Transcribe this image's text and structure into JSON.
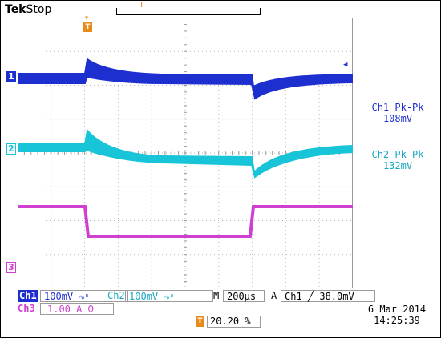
{
  "header": {
    "brand": "Tek",
    "state": "Stop"
  },
  "markers": {
    "trigger_glyph": "T",
    "ch1": "1",
    "ch2": "2",
    "ch3": "3"
  },
  "colors": {
    "ch1": "#1e2fd0",
    "ch2": "#18c4d8",
    "ch3": "#d040d0",
    "trigger": "#e88a18"
  },
  "measurements": [
    {
      "label": "Ch1 Pk-Pk",
      "value": "108mV"
    },
    {
      "label": "Ch2 Pk-Pk",
      "value": "132mV"
    }
  ],
  "readout": {
    "ch1_label": "Ch1",
    "ch1_scale": "100mV",
    "ch2_label": "Ch2",
    "ch2_scale": "100mV",
    "m_label": "M",
    "timebase": "200µs",
    "a_label": "A",
    "trigger": "Ch1  ╱  38.0mV",
    "ch3_label": "Ch3",
    "ch3_scale": "1.00 A Ω",
    "trigger_position": "20.20 %",
    "date": "6 Mar  2014",
    "time": "14:25:39"
  }
}
